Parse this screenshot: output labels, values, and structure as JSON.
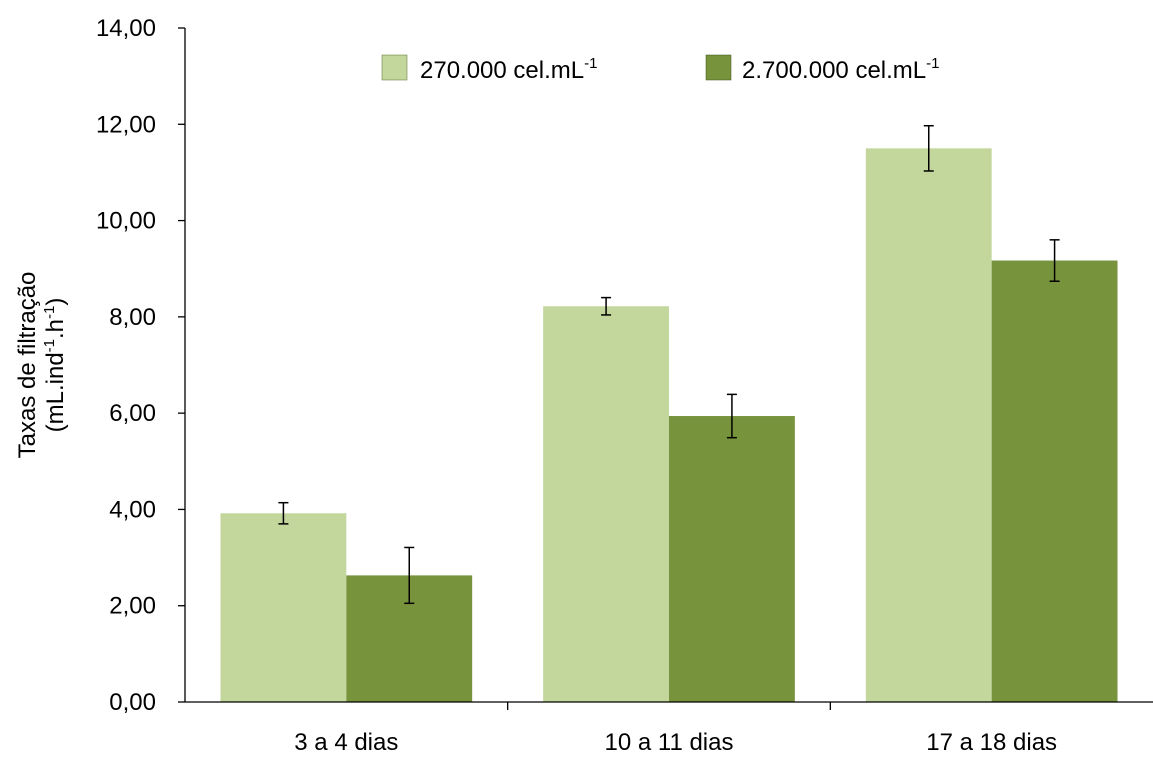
{
  "chart_data": {
    "type": "bar",
    "title": "",
    "xlabel": "",
    "ylabel": {
      "line1": "Taxas de filtração",
      "line2_prefix": "(mL.ind",
      "line2_sup1": "-1",
      "line2_mid": ".h",
      "line2_sup2": "-1",
      "line2_suffix": ")"
    },
    "ylim": [
      0,
      14
    ],
    "yticks": [
      "0,00",
      "2,00",
      "4,00",
      "6,00",
      "8,00",
      "10,00",
      "12,00",
      "14,00"
    ],
    "categories": [
      "3 a 4 dias",
      "10 a 11 dias",
      "17 a 18 dias"
    ],
    "series": [
      {
        "name": "270.000 cel.mL-1",
        "legend_base": "270.000 cel.mL",
        "legend_sup": "-1",
        "color": "#c3d69b",
        "values": [
          3.92,
          8.22,
          11.5
        ],
        "errors": [
          0.22,
          0.18,
          0.47
        ]
      },
      {
        "name": "2.700.000 cel.mL-1",
        "legend_base": "2.700.000 cel.mL",
        "legend_sup": "-1",
        "color": "#77933c",
        "values": [
          2.63,
          5.94,
          9.17
        ],
        "errors": [
          0.58,
          0.45,
          0.43
        ]
      }
    ],
    "grid": false,
    "legend_position": "top-right",
    "error_bars": true
  }
}
